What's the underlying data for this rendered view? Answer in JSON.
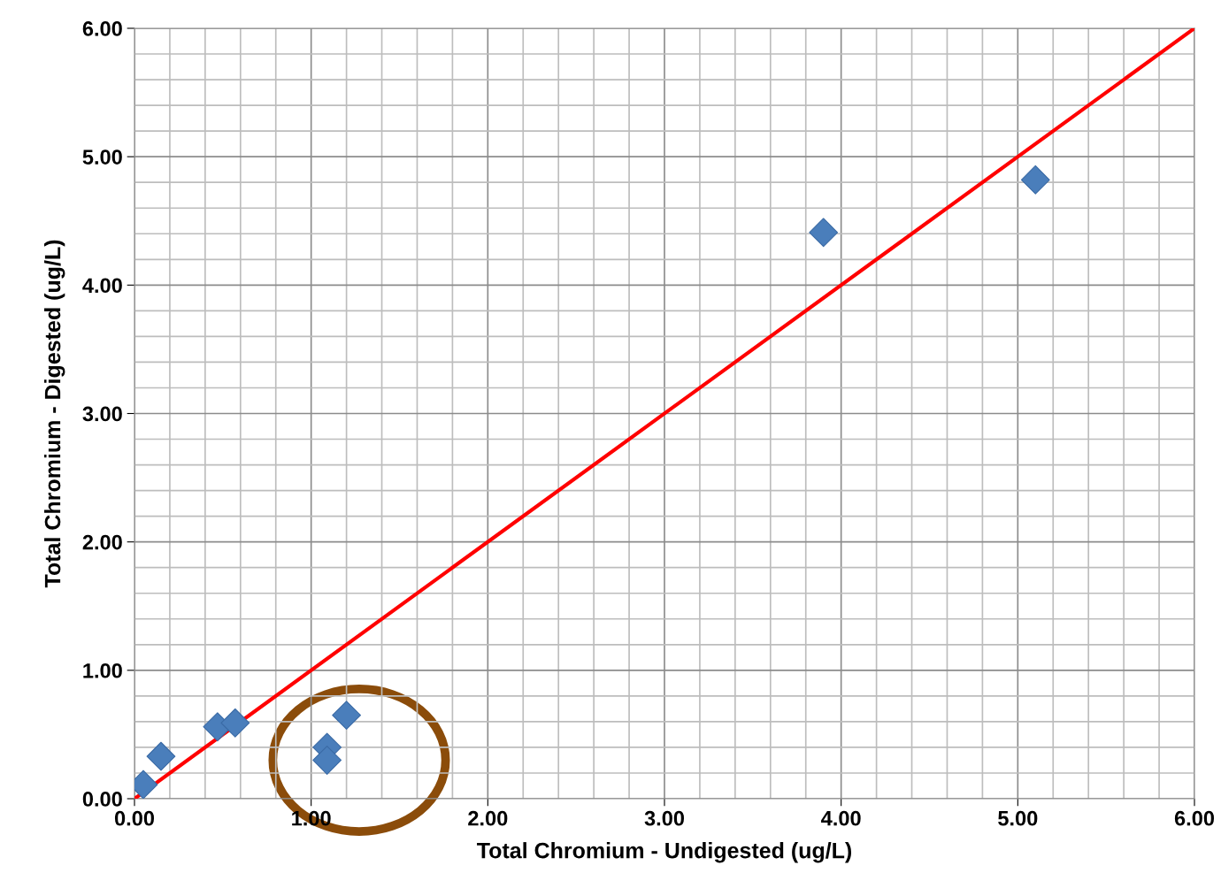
{
  "chart_data": {
    "type": "scatter",
    "xlabel": "Total Chromium - Undigested (ug/L)",
    "ylabel": "Total Chromium - Digested (ug/L)",
    "xlim": [
      0,
      6
    ],
    "ylim": [
      0,
      6
    ],
    "xticks": [
      {
        "value": 0,
        "label": "0.00"
      },
      {
        "value": 0.2,
        "label": null
      },
      {
        "value": 0.4,
        "label": null
      },
      {
        "value": 0.6,
        "label": null
      },
      {
        "value": 0.8,
        "label": null
      },
      {
        "value": 1,
        "label": "1.00"
      },
      {
        "value": 1.2,
        "label": null
      },
      {
        "value": 1.4,
        "label": null
      },
      {
        "value": 1.6,
        "label": null
      },
      {
        "value": 1.8,
        "label": null
      },
      {
        "value": 2,
        "label": "2.00"
      },
      {
        "value": 2.2,
        "label": null
      },
      {
        "value": 2.4,
        "label": null
      },
      {
        "value": 2.6,
        "label": null
      },
      {
        "value": 2.8,
        "label": null
      },
      {
        "value": 3,
        "label": "3.00"
      },
      {
        "value": 3.2,
        "label": null
      },
      {
        "value": 3.4,
        "label": null
      },
      {
        "value": 3.6,
        "label": null
      },
      {
        "value": 3.8,
        "label": null
      },
      {
        "value": 4,
        "label": "4.00"
      },
      {
        "value": 4.2,
        "label": null
      },
      {
        "value": 4.4,
        "label": null
      },
      {
        "value": 4.6,
        "label": null
      },
      {
        "value": 4.8,
        "label": null
      },
      {
        "value": 5,
        "label": "5.00"
      },
      {
        "value": 5.2,
        "label": null
      },
      {
        "value": 5.4,
        "label": null
      },
      {
        "value": 5.6,
        "label": null
      },
      {
        "value": 5.8,
        "label": null
      },
      {
        "value": 6,
        "label": "6.00"
      }
    ],
    "yticks": [
      {
        "value": 0,
        "label": "0.00"
      },
      {
        "value": 0.2,
        "label": null
      },
      {
        "value": 0.4,
        "label": null
      },
      {
        "value": 0.6,
        "label": null
      },
      {
        "value": 0.8,
        "label": null
      },
      {
        "value": 1,
        "label": "1.00"
      },
      {
        "value": 1.2,
        "label": null
      },
      {
        "value": 1.4,
        "label": null
      },
      {
        "value": 1.6,
        "label": null
      },
      {
        "value": 1.8,
        "label": null
      },
      {
        "value": 2,
        "label": "2.00"
      },
      {
        "value": 2.2,
        "label": null
      },
      {
        "value": 2.4,
        "label": null
      },
      {
        "value": 2.6,
        "label": null
      },
      {
        "value": 2.8,
        "label": null
      },
      {
        "value": 3,
        "label": "3.00"
      },
      {
        "value": 3.2,
        "label": null
      },
      {
        "value": 3.4,
        "label": null
      },
      {
        "value": 3.6,
        "label": null
      },
      {
        "value": 3.8,
        "label": null
      },
      {
        "value": 4,
        "label": "4.00"
      },
      {
        "value": 4.2,
        "label": null
      },
      {
        "value": 4.4,
        "label": null
      },
      {
        "value": 4.6,
        "label": null
      },
      {
        "value": 4.8,
        "label": null
      },
      {
        "value": 5,
        "label": "5.00"
      },
      {
        "value": 5.2,
        "label": null
      },
      {
        "value": 5.4,
        "label": null
      },
      {
        "value": 5.6,
        "label": null
      },
      {
        "value": 5.8,
        "label": null
      },
      {
        "value": 6,
        "label": "6.00"
      }
    ],
    "grid": true,
    "marker": "diamond",
    "series": [
      {
        "color": "#4a7ebb",
        "x": [
          0.05,
          0.15,
          0.47,
          0.57,
          1.09,
          1.09,
          1.2,
          3.9,
          5.1
        ],
        "values": [
          0.11,
          0.33,
          0.56,
          0.59,
          0.4,
          0.3,
          0.65,
          4.41,
          4.82
        ]
      },
      {
        "type": "line",
        "color": "#ff0000",
        "marker": "none",
        "x": [
          0,
          6
        ],
        "values": [
          0,
          6
        ]
      }
    ]
  }
}
